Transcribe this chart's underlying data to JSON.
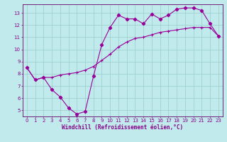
{
  "title": "",
  "xlabel": "Windchill (Refroidissement éolien,°C)",
  "ylabel": "",
  "xlim": [
    -0.5,
    23.5
  ],
  "ylim": [
    4.5,
    13.7
  ],
  "xticks": [
    0,
    1,
    2,
    3,
    4,
    5,
    6,
    7,
    8,
    9,
    10,
    11,
    12,
    13,
    14,
    15,
    16,
    17,
    18,
    19,
    20,
    21,
    22,
    23
  ],
  "yticks": [
    5,
    6,
    7,
    8,
    9,
    10,
    11,
    12,
    13
  ],
  "bg_color": "#c0eaec",
  "grid_color": "#99cccc",
  "line_color": "#990099",
  "curve1_x": [
    0,
    1,
    2,
    3,
    4,
    5,
    6,
    7,
    8,
    9,
    10,
    11,
    12,
    13,
    14,
    15,
    16,
    17,
    18,
    19,
    20,
    21,
    22,
    23
  ],
  "curve1_y": [
    8.5,
    7.5,
    7.7,
    6.7,
    6.1,
    5.2,
    4.7,
    4.9,
    7.8,
    10.4,
    11.8,
    12.8,
    12.5,
    12.5,
    12.1,
    12.9,
    12.5,
    12.8,
    13.3,
    13.4,
    13.4,
    13.2,
    12.1,
    11.1
  ],
  "curve2_x": [
    0,
    1,
    2,
    3,
    4,
    5,
    6,
    7,
    8,
    9,
    10,
    11,
    12,
    13,
    14,
    15,
    16,
    17,
    18,
    19,
    20,
    21,
    22,
    23
  ],
  "curve2_y": [
    8.5,
    7.5,
    7.7,
    7.7,
    7.9,
    8.0,
    8.1,
    8.3,
    8.6,
    9.1,
    9.6,
    10.2,
    10.6,
    10.9,
    11.0,
    11.2,
    11.4,
    11.5,
    11.6,
    11.7,
    11.8,
    11.8,
    11.8,
    11.1
  ],
  "font_color": "#880088",
  "axis_color": "#660066",
  "tick_fontsize": 5.0,
  "label_fontsize": 5.5,
  "marker1": "D",
  "marker2": "+"
}
